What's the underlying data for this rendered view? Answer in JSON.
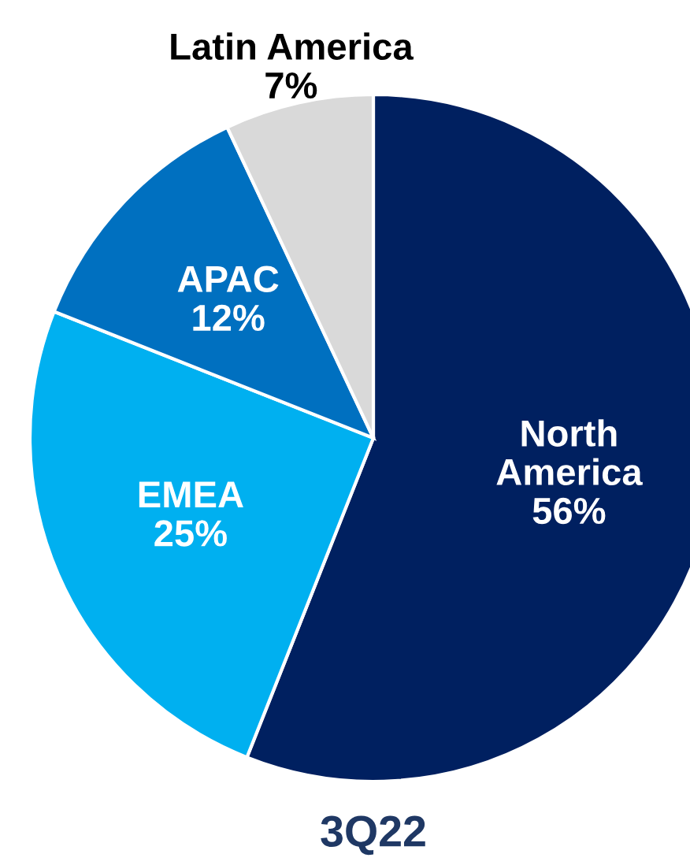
{
  "chart_data": {
    "type": "pie",
    "title": "3Q22",
    "categories": [
      "North America",
      "EMEA",
      "APAC",
      "Latin America"
    ],
    "values": [
      56,
      25,
      12,
      7
    ],
    "colors": [
      "#002060",
      "#00b0f0",
      "#0070c0",
      "#d9d9d9"
    ],
    "value_labels": [
      "56%",
      "25%",
      "12%",
      "7%"
    ],
    "legend": false
  }
}
